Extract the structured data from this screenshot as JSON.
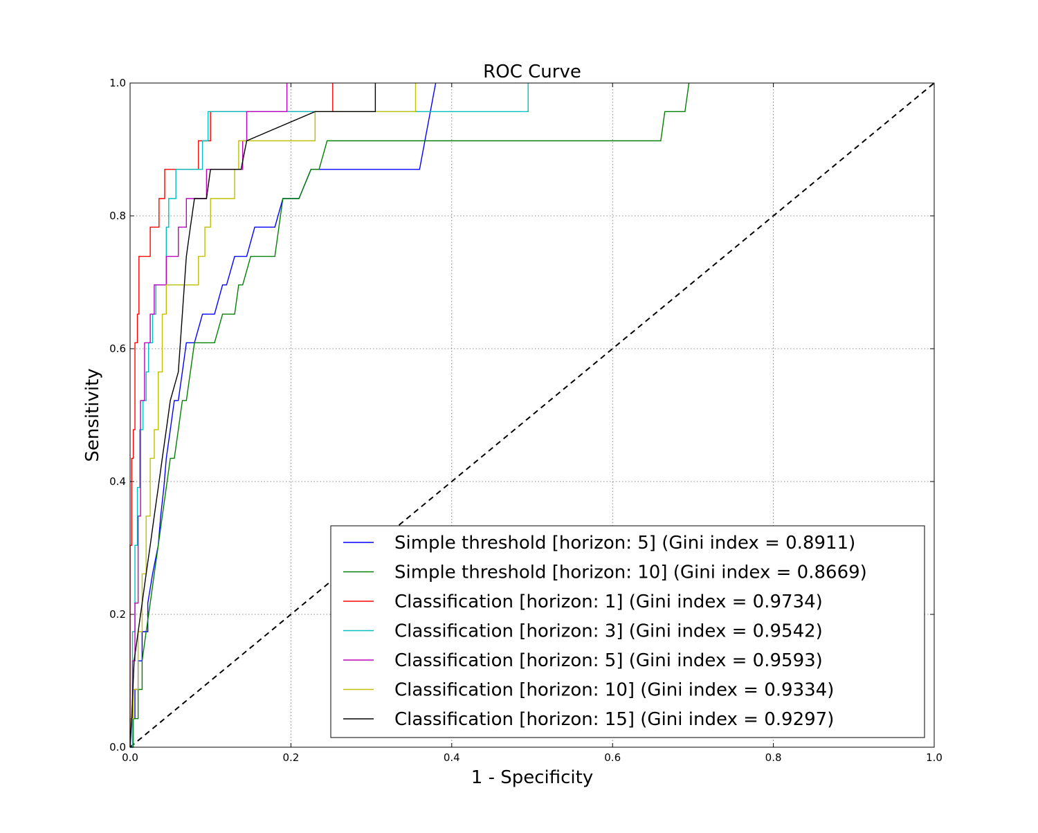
{
  "chart_data": {
    "type": "line",
    "title": "ROC Curve",
    "xlabel": "1 - Specificity",
    "ylabel": "Sensitivity",
    "xlim": [
      0.0,
      1.0
    ],
    "ylim": [
      0.0,
      1.0
    ],
    "x_ticks": [
      "0.0",
      "0.2",
      "0.4",
      "0.6",
      "0.8",
      "1.0"
    ],
    "y_ticks": [
      "0.0",
      "0.2",
      "0.4",
      "0.6",
      "0.8",
      "1.0"
    ],
    "grid": true,
    "legend_position": "lower-right",
    "diagonal": {
      "x": [
        0,
        1
      ],
      "y": [
        0,
        1
      ],
      "color": "#000000",
      "style": "dashed"
    },
    "series": [
      {
        "name": "Simple threshold [horizon: 5] (Gini index = 0.8911)",
        "color": "#0000ff",
        "x": [
          0.0,
          0.003,
          0.003,
          0.006,
          0.006,
          0.01,
          0.01,
          0.015,
          0.015,
          0.022,
          0.022,
          0.028,
          0.035,
          0.038,
          0.042,
          0.045,
          0.05,
          0.055,
          0.06,
          0.065,
          0.07,
          0.075,
          0.08,
          0.09,
          0.095,
          0.105,
          0.115,
          0.12,
          0.13,
          0.14,
          0.145,
          0.155,
          0.16,
          0.17,
          0.18,
          0.19,
          0.195,
          0.205,
          0.21,
          0.225,
          0.235,
          0.36,
          0.38
        ],
        "y": [
          0.0,
          0.0,
          0.043,
          0.043,
          0.087,
          0.087,
          0.13,
          0.13,
          0.174,
          0.174,
          0.217,
          0.261,
          0.304,
          0.348,
          0.391,
          0.435,
          0.478,
          0.522,
          0.522,
          0.565,
          0.609,
          0.609,
          0.609,
          0.652,
          0.652,
          0.652,
          0.696,
          0.696,
          0.739,
          0.739,
          0.739,
          0.783,
          0.783,
          0.783,
          0.783,
          0.826,
          0.826,
          0.826,
          0.826,
          0.87,
          0.87,
          0.87,
          1.0
        ]
      },
      {
        "name": "Simple threshold [horizon: 10] (Gini index = 0.8669)",
        "color": "#008000",
        "x": [
          0.0,
          0.004,
          0.004,
          0.01,
          0.01,
          0.015,
          0.015,
          0.02,
          0.025,
          0.03,
          0.035,
          0.04,
          0.045,
          0.05,
          0.055,
          0.06,
          0.065,
          0.07,
          0.075,
          0.08,
          0.085,
          0.095,
          0.105,
          0.115,
          0.12,
          0.13,
          0.135,
          0.14,
          0.15,
          0.155,
          0.17,
          0.18,
          0.185,
          0.19,
          0.195,
          0.205,
          0.21,
          0.225,
          0.235,
          0.245,
          0.66,
          0.665,
          0.67,
          0.69,
          0.695
        ],
        "y": [
          0.0,
          0.0,
          0.043,
          0.043,
          0.087,
          0.087,
          0.13,
          0.174,
          0.217,
          0.261,
          0.304,
          0.348,
          0.391,
          0.435,
          0.435,
          0.478,
          0.522,
          0.522,
          0.565,
          0.609,
          0.609,
          0.609,
          0.609,
          0.652,
          0.652,
          0.652,
          0.696,
          0.696,
          0.739,
          0.739,
          0.739,
          0.739,
          0.783,
          0.826,
          0.826,
          0.826,
          0.826,
          0.87,
          0.87,
          0.913,
          0.913,
          0.957,
          0.957,
          0.957,
          1.0
        ]
      },
      {
        "name": "Classification [horizon: 1] (Gini index = 0.9734)",
        "color": "#ff0000",
        "x": [
          0.0,
          0.0,
          0.002,
          0.002,
          0.004,
          0.004,
          0.006,
          0.006,
          0.009,
          0.009,
          0.011,
          0.011,
          0.025,
          0.025,
          0.036,
          0.036,
          0.04,
          0.04,
          0.043,
          0.043,
          0.055,
          0.055,
          0.085,
          0.085,
          0.1,
          0.1,
          0.23,
          0.23,
          0.252,
          0.252
        ],
        "y": [
          0.0,
          0.304,
          0.304,
          0.435,
          0.435,
          0.478,
          0.478,
          0.609,
          0.609,
          0.652,
          0.652,
          0.739,
          0.739,
          0.783,
          0.783,
          0.826,
          0.826,
          0.826,
          0.826,
          0.87,
          0.87,
          0.87,
          0.87,
          0.913,
          0.913,
          0.957,
          0.957,
          0.957,
          0.957,
          1.0
        ]
      },
      {
        "name": "Classification [horizon: 3] (Gini index = 0.9542)",
        "color": "#00bfbf",
        "x": [
          0.0,
          0.003,
          0.003,
          0.006,
          0.006,
          0.009,
          0.009,
          0.012,
          0.012,
          0.016,
          0.016,
          0.02,
          0.02,
          0.023,
          0.023,
          0.028,
          0.028,
          0.032,
          0.032,
          0.045,
          0.045,
          0.048,
          0.048,
          0.052,
          0.052,
          0.057,
          0.057,
          0.09,
          0.09,
          0.097,
          0.097,
          0.495,
          0.495
        ],
        "y": [
          0.0,
          0.0,
          0.174,
          0.174,
          0.304,
          0.304,
          0.391,
          0.391,
          0.478,
          0.478,
          0.522,
          0.522,
          0.565,
          0.565,
          0.609,
          0.609,
          0.652,
          0.652,
          0.696,
          0.696,
          0.783,
          0.783,
          0.826,
          0.826,
          0.826,
          0.826,
          0.87,
          0.87,
          0.913,
          0.913,
          0.957,
          0.957,
          1.0
        ]
      },
      {
        "name": "Classification [horizon: 5] (Gini index = 0.9593)",
        "color": "#bf00bf",
        "x": [
          0.0,
          0.0,
          0.003,
          0.003,
          0.006,
          0.006,
          0.01,
          0.01,
          0.013,
          0.013,
          0.018,
          0.018,
          0.025,
          0.025,
          0.03,
          0.03,
          0.045,
          0.045,
          0.06,
          0.06,
          0.07,
          0.07,
          0.08,
          0.08,
          0.095,
          0.095,
          0.14,
          0.14,
          0.145,
          0.145,
          0.195,
          0.195
        ],
        "y": [
          0.0,
          0.043,
          0.043,
          0.13,
          0.13,
          0.217,
          0.217,
          0.348,
          0.348,
          0.522,
          0.522,
          0.609,
          0.609,
          0.652,
          0.652,
          0.696,
          0.696,
          0.739,
          0.739,
          0.783,
          0.783,
          0.826,
          0.826,
          0.826,
          0.826,
          0.87,
          0.87,
          0.913,
          0.913,
          0.957,
          0.957,
          1.0
        ]
      },
      {
        "name": "Classification [horizon: 10] (Gini index = 0.9334)",
        "color": "#bfbf00",
        "x": [
          0.0,
          0.0,
          0.004,
          0.004,
          0.01,
          0.01,
          0.015,
          0.015,
          0.02,
          0.02,
          0.025,
          0.025,
          0.03,
          0.03,
          0.035,
          0.035,
          0.04,
          0.04,
          0.045,
          0.045,
          0.085,
          0.085,
          0.093,
          0.093,
          0.1,
          0.1,
          0.105,
          0.105,
          0.13,
          0.13,
          0.135,
          0.135,
          0.23,
          0.23,
          0.355,
          0.355
        ],
        "y": [
          0.0,
          0.043,
          0.043,
          0.087,
          0.087,
          0.174,
          0.174,
          0.261,
          0.261,
          0.348,
          0.348,
          0.435,
          0.435,
          0.478,
          0.478,
          0.565,
          0.565,
          0.652,
          0.652,
          0.696,
          0.696,
          0.739,
          0.739,
          0.783,
          0.783,
          0.826,
          0.826,
          0.826,
          0.826,
          0.87,
          0.87,
          0.913,
          0.913,
          0.957,
          0.957,
          1.0
        ]
      },
      {
        "name": "Classification [horizon: 15] (Gini index = 0.9297)",
        "color": "#000000",
        "x": [
          0.0,
          0.0,
          0.002,
          0.002,
          0.005,
          0.005,
          0.015,
          0.015,
          0.02,
          0.02,
          0.025,
          0.025,
          0.03,
          0.03,
          0.035,
          0.035,
          0.04,
          0.04,
          0.045,
          0.045,
          0.05,
          0.05,
          0.06,
          0.06,
          0.065,
          0.065,
          0.07,
          0.07,
          0.075,
          0.075,
          0.08,
          0.08,
          0.095,
          0.095,
          0.1,
          0.1,
          0.138,
          0.138,
          0.145,
          0.145,
          0.23,
          0.23,
          0.305,
          0.305
        ],
        "y": [
          0.0,
          0.0,
          0.043,
          0.043,
          0.13,
          0.13,
          0.217,
          0.217,
          0.261,
          0.261,
          0.304,
          0.304,
          0.348,
          0.348,
          0.391,
          0.391,
          0.435,
          0.435,
          0.478,
          0.478,
          0.522,
          0.522,
          0.565,
          0.565,
          0.652,
          0.652,
          0.739,
          0.739,
          0.783,
          0.783,
          0.826,
          0.826,
          0.826,
          0.826,
          0.87,
          0.87,
          0.87,
          0.87,
          0.913,
          0.913,
          0.957,
          0.957,
          0.957,
          1.0
        ]
      }
    ]
  }
}
